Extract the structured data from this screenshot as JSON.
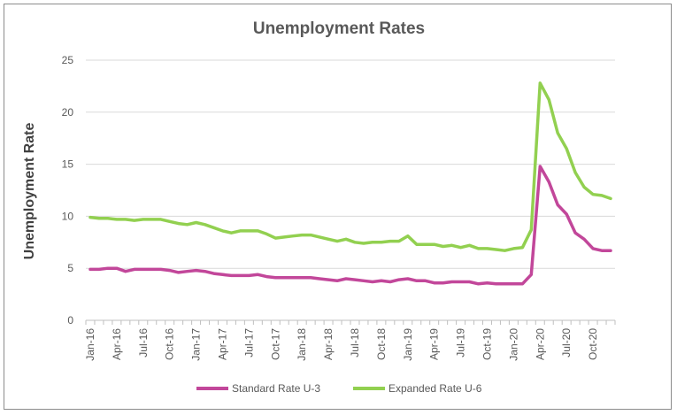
{
  "chart_data": {
    "type": "line",
    "title": "Unemployment Rates",
    "xlabel": "",
    "ylabel": "Unemployment Rate",
    "ylim": [
      0,
      25
    ],
    "yticks": [
      0,
      5,
      10,
      15,
      20,
      25
    ],
    "grid": true,
    "legend_position": "bottom",
    "x": [
      "Jan-16",
      "Feb-16",
      "Mar-16",
      "Apr-16",
      "May-16",
      "Jun-16",
      "Jul-16",
      "Aug-16",
      "Sep-16",
      "Oct-16",
      "Nov-16",
      "Dec-16",
      "Jan-17",
      "Feb-17",
      "Mar-17",
      "Apr-17",
      "May-17",
      "Jun-17",
      "Jul-17",
      "Aug-17",
      "Sep-17",
      "Oct-17",
      "Nov-17",
      "Dec-17",
      "Jan-18",
      "Feb-18",
      "Mar-18",
      "Apr-18",
      "May-18",
      "Jun-18",
      "Jul-18",
      "Aug-18",
      "Sep-18",
      "Oct-18",
      "Nov-18",
      "Dec-18",
      "Jan-19",
      "Feb-19",
      "Mar-19",
      "Apr-19",
      "May-19",
      "Jun-19",
      "Jul-19",
      "Aug-19",
      "Sep-19",
      "Oct-19",
      "Nov-19",
      "Dec-19",
      "Jan-20",
      "Feb-20",
      "Mar-20",
      "Apr-20",
      "May-20",
      "Jun-20",
      "Jul-20",
      "Aug-20",
      "Sep-20",
      "Oct-20",
      "Nov-20",
      "Dec-20"
    ],
    "xtick_labels": [
      "Jan-16",
      "Apr-16",
      "Jul-16",
      "Oct-16",
      "Jan-17",
      "Apr-17",
      "Jul-17",
      "Oct-17",
      "Jan-18",
      "Apr-18",
      "Jul-18",
      "Oct-18",
      "Jan-19",
      "Apr-19",
      "Jul-19",
      "Oct-19",
      "Jan-20",
      "Apr-20",
      "Jul-20",
      "Oct-20"
    ],
    "series": [
      {
        "name": "Standard Rate U-3",
        "color": "#c2479a",
        "values": [
          4.9,
          4.9,
          5.0,
          5.0,
          4.7,
          4.9,
          4.9,
          4.9,
          4.9,
          4.8,
          4.6,
          4.7,
          4.8,
          4.7,
          4.5,
          4.4,
          4.3,
          4.3,
          4.3,
          4.4,
          4.2,
          4.1,
          4.1,
          4.1,
          4.1,
          4.1,
          4.0,
          3.9,
          3.8,
          4.0,
          3.9,
          3.8,
          3.7,
          3.8,
          3.7,
          3.9,
          4.0,
          3.8,
          3.8,
          3.6,
          3.6,
          3.7,
          3.7,
          3.7,
          3.5,
          3.6,
          3.5,
          3.5,
          3.5,
          3.5,
          4.4,
          14.8,
          13.3,
          11.1,
          10.2,
          8.4,
          7.8,
          6.9,
          6.7,
          6.7
        ]
      },
      {
        "name": "Expanded Rate U-6",
        "color": "#92d050",
        "values": [
          9.9,
          9.8,
          9.8,
          9.7,
          9.7,
          9.6,
          9.7,
          9.7,
          9.7,
          9.5,
          9.3,
          9.2,
          9.4,
          9.2,
          8.9,
          8.6,
          8.4,
          8.6,
          8.6,
          8.6,
          8.3,
          7.9,
          8.0,
          8.1,
          8.2,
          8.2,
          8.0,
          7.8,
          7.6,
          7.8,
          7.5,
          7.4,
          7.5,
          7.5,
          7.6,
          7.6,
          8.1,
          7.3,
          7.3,
          7.3,
          7.1,
          7.2,
          7.0,
          7.2,
          6.9,
          6.9,
          6.8,
          6.7,
          6.9,
          7.0,
          8.7,
          22.8,
          21.2,
          18.0,
          16.5,
          14.2,
          12.8,
          12.1,
          12.0,
          11.7
        ]
      }
    ]
  }
}
